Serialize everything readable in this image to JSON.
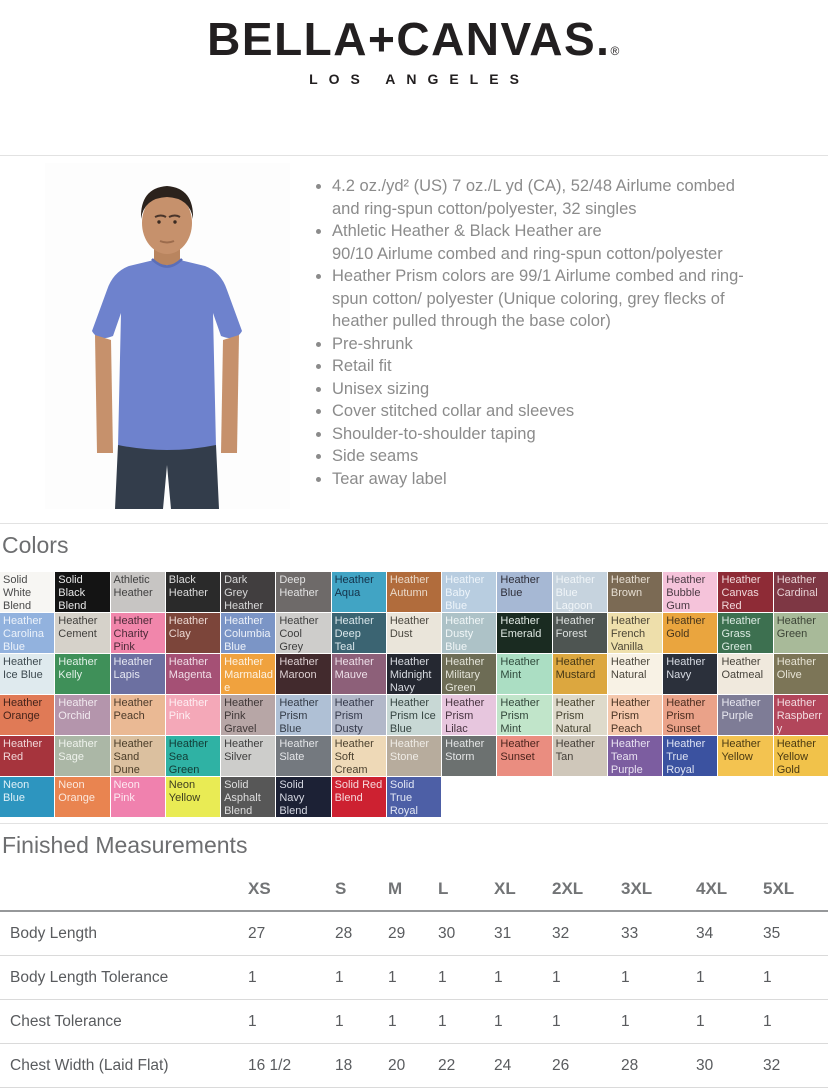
{
  "logo": {
    "brand": "BELLA+CANVAS.",
    "registered": "®",
    "subtitle": "LOS ANGELES"
  },
  "product": {
    "photo_colors": {
      "shirt": "#6e82cd",
      "jeans": "#333d4b",
      "skin": "#c6916c",
      "hair": "#2b221c"
    },
    "bullets": [
      "4.2 oz./yd² (US) 7 oz./L yd (CA), 52/48 Airlume combed\nand ring-spun cotton/polyester, 32 singles",
      "Athletic Heather & Black Heather are\n90/10 Airlume combed and ring-spun cotton/polyester",
      "Heather Prism colors are 99/1 Airlume combed and ring-\nspun cotton/ polyester (Unique coloring, grey flecks of\nheather pulled through the base color)",
      "Pre-shrunk",
      "Retail fit",
      "Unisex sizing",
      "Cover stitched collar and sleeves",
      "Shoulder-to-shoulder taping",
      "Side seams",
      "Tear away label"
    ]
  },
  "colors": {
    "title": "Colors",
    "swatches": [
      {
        "name": "Solid White Blend",
        "bg": "#f7f6f3",
        "fg": "#4a4a4a"
      },
      {
        "name": "Solid Black Blend",
        "bg": "#141414",
        "fg": "#e8e8e8"
      },
      {
        "name": "Athletic Heather",
        "bg": "#c7c5c3",
        "fg": "#3f3f3f"
      },
      {
        "name": "Black Heather",
        "bg": "#2a2a2a",
        "fg": "#dcdcdc"
      },
      {
        "name": "Dark Grey Heather",
        "bg": "#413e3f",
        "fg": "#d8d8d8"
      },
      {
        "name": "Deep Heather",
        "bg": "#6e6a69",
        "fg": "#e2e2e2"
      },
      {
        "name": "Heather Aqua",
        "bg": "#41a4c4",
        "fg": "#14324a"
      },
      {
        "name": "Heather Autumn",
        "bg": "#b16c3c",
        "fg": "#eadaca"
      },
      {
        "name": "Heather Baby Blue",
        "bg": "#b8cde0",
        "fg": "#edf4fa"
      },
      {
        "name": "Heather Blue",
        "bg": "#a6b8d4",
        "fg": "#2f2f3a"
      },
      {
        "name": "Heather Blue Lagoon",
        "bg": "#c6d3de",
        "fg": "#f0f5f8"
      },
      {
        "name": "Heather Brown",
        "bg": "#7b6a54",
        "fg": "#e6ded2"
      },
      {
        "name": "Heather Bubble Gum",
        "bg": "#f5c3da",
        "fg": "#4a3a44"
      },
      {
        "name": "Heather Canvas Red",
        "bg": "#8e2b36",
        "fg": "#f0d8da"
      },
      {
        "name": "Heather Cardinal",
        "bg": "#7e3744",
        "fg": "#e8d2d5"
      },
      {
        "name": "Heather Carolina Blue",
        "bg": "#92b2de",
        "fg": "#ecf2fa"
      },
      {
        "name": "Heather Cement",
        "bg": "#d6d2ca",
        "fg": "#403f3c"
      },
      {
        "name": "Heather Charity Pink",
        "bg": "#f186ab",
        "fg": "#4c2a38"
      },
      {
        "name": "Heather Clay",
        "bg": "#7c453a",
        "fg": "#ecd8d2"
      },
      {
        "name": "Heather Columbia Blue",
        "bg": "#7b95c6",
        "fg": "#eef2f9"
      },
      {
        "name": "Heather Cool Grey",
        "bg": "#cecdcb",
        "fg": "#3e3e3e"
      },
      {
        "name": "Heather Deep Teal",
        "bg": "#3b6472",
        "fg": "#d9e6ea"
      },
      {
        "name": "Heather Dust",
        "bg": "#eae5da",
        "fg": "#4a473f"
      },
      {
        "name": "Heather Dusty Blue",
        "bg": "#adc2c7",
        "fg": "#f0f6f7"
      },
      {
        "name": "Heather Emerald",
        "bg": "#1a2b21",
        "fg": "#dfe8e2"
      },
      {
        "name": "Heather Forest",
        "bg": "#4e5552",
        "fg": "#dde1df"
      },
      {
        "name": "Heather French Vanilla",
        "bg": "#eedfab",
        "fg": "#4c4636"
      },
      {
        "name": "Heather Gold",
        "bg": "#eaa53e",
        "fg": "#46351c"
      },
      {
        "name": "Heather Grass Green",
        "bg": "#3d7050",
        "fg": "#dcebe2"
      },
      {
        "name": "Heather Green",
        "bg": "#a8ba99",
        "fg": "#3c4436"
      },
      {
        "name": "Heather Ice Blue",
        "bg": "#dfeaee",
        "fg": "#3d4a50"
      },
      {
        "name": "Heather Kelly",
        "bg": "#3f9059",
        "fg": "#e1f0e7"
      },
      {
        "name": "Heather Lapis",
        "bg": "#6c70a1",
        "fg": "#e6e8f2"
      },
      {
        "name": "Heather Magenta",
        "bg": "#a55075",
        "fg": "#f0dde7"
      },
      {
        "name": "Heather Marmalade",
        "bg": "#f0a23e",
        "fg": "#fdf3e3"
      },
      {
        "name": "Heather Maroon",
        "bg": "#422a2d",
        "fg": "#ddd0d2"
      },
      {
        "name": "Heather Mauve",
        "bg": "#8d6079",
        "fg": "#eddfe8"
      },
      {
        "name": "Heather Midnight Navy",
        "bg": "#252831",
        "fg": "#d7dae0"
      },
      {
        "name": "Heather Military Green",
        "bg": "#6d6c55",
        "fg": "#e3e3d8"
      },
      {
        "name": "Heather Mint",
        "bg": "#abdec3",
        "fg": "#2f4a3c"
      },
      {
        "name": "Heather Mustard",
        "bg": "#dca73f",
        "fg": "#443615"
      },
      {
        "name": "Heather Natural",
        "bg": "#f8f2e5",
        "fg": "#4a463c"
      },
      {
        "name": "Heather Navy",
        "bg": "#2b303b",
        "fg": "#d6dae2"
      },
      {
        "name": "Heather Oatmeal",
        "bg": "#f0e9dd",
        "fg": "#47433b"
      },
      {
        "name": "Heather Olive",
        "bg": "#7c7557",
        "fg": "#e6e3d4"
      },
      {
        "name": "Heather Orange",
        "bg": "#e07a56",
        "fg": "#45231a"
      },
      {
        "name": "Heather Orchid",
        "bg": "#b495ac",
        "fg": "#f1e9ef"
      },
      {
        "name": "Heather Peach",
        "bg": "#eab994",
        "fg": "#4c3a2a"
      },
      {
        "name": "Heather Pink",
        "bg": "#f4a8b8",
        "fg": "#fdeef2"
      },
      {
        "name": "Heather Pink Gravel",
        "bg": "#b7a6a6",
        "fg": "#3e3636"
      },
      {
        "name": "Heather Prism Blue",
        "bg": "#afc0d5",
        "fg": "#333b47"
      },
      {
        "name": "Heather Prism Dusty Blue",
        "bg": "#b2b8c9",
        "fg": "#34384a"
      },
      {
        "name": "Heather Prism Ice Blue",
        "bg": "#c8d8d5",
        "fg": "#364542"
      },
      {
        "name": "Heather Prism Lilac",
        "bg": "#e7c6de",
        "fg": "#46323f"
      },
      {
        "name": "Heather Prism Mint",
        "bg": "#c1e5ca",
        "fg": "#32463a"
      },
      {
        "name": "Heather Prism Natural",
        "bg": "#dedacb",
        "fg": "#44412f"
      },
      {
        "name": "Heather Prism Peach",
        "bg": "#f5c8ad",
        "fg": "#4a3424"
      },
      {
        "name": "Heather Prism Sunset",
        "bg": "#eaa289",
        "fg": "#4a2c1f"
      },
      {
        "name": "Heather Purple",
        "bg": "#7e7c96",
        "fg": "#e9e9f1"
      },
      {
        "name": "Heather Raspberry",
        "bg": "#b2465b",
        "fg": "#f2dbe0"
      },
      {
        "name": "Heather Red",
        "bg": "#a6343d",
        "fg": "#f0d6d8"
      },
      {
        "name": "Heather Sage",
        "bg": "#abb7a6",
        "fg": "#eef2ec"
      },
      {
        "name": "Heather Sand Dune",
        "bg": "#dbc09f",
        "fg": "#4a3c28"
      },
      {
        "name": "Heather Sea Green",
        "bg": "#2fb2a4",
        "fg": "#123c36"
      },
      {
        "name": "Heather Silver",
        "bg": "#cdcdcb",
        "fg": "#3e3e3e"
      },
      {
        "name": "Heather Slate",
        "bg": "#74797f",
        "fg": "#e3e5e8"
      },
      {
        "name": "Heather Soft Cream",
        "bg": "#eed9b7",
        "fg": "#4c4230"
      },
      {
        "name": "Heather Stone",
        "bg": "#b7ac9d",
        "fg": "#efece6"
      },
      {
        "name": "Heather Storm",
        "bg": "#6c7170",
        "fg": "#e2e4e4"
      },
      {
        "name": "Heather Sunset",
        "bg": "#ea8d80",
        "fg": "#4c241d"
      },
      {
        "name": "Heather Tan",
        "bg": "#cfc7ba",
        "fg": "#45403a"
      },
      {
        "name": "Heather Team Purple",
        "bg": "#7c5da0",
        "fg": "#e9e2f1"
      },
      {
        "name": "Heather True Royal",
        "bg": "#3b52a0",
        "fg": "#dde3f2"
      },
      {
        "name": "Heather Yellow",
        "bg": "#f3c350",
        "fg": "#4a3a12"
      },
      {
        "name": "Heather Yellow Gold",
        "bg": "#f1c24a",
        "fg": "#4a3a12"
      },
      {
        "name": "Neon Blue",
        "bg": "#2d95bf",
        "fg": "#dff0f7"
      },
      {
        "name": "Neon Orange",
        "bg": "#e98450",
        "fg": "#fbe8dd"
      },
      {
        "name": "Neon Pink",
        "bg": "#f081ae",
        "fg": "#fde9f1"
      },
      {
        "name": "Neon Yellow",
        "bg": "#e9eb54",
        "fg": "#3e3e20"
      },
      {
        "name": "Solid Asphalt Blend",
        "bg": "#575757",
        "fg": "#dedede"
      },
      {
        "name": "Solid Navy Blend",
        "bg": "#1c2135",
        "fg": "#d5d8e2"
      },
      {
        "name": "Solid Red Blend",
        "bg": "#cd2131",
        "fg": "#f6d9dc"
      },
      {
        "name": "Solid True Royal Blend",
        "bg": "#4d5fa6",
        "fg": "#e2e7f4"
      }
    ]
  },
  "measurements": {
    "title": "Finished Measurements",
    "sizes": [
      "XS",
      "S",
      "M",
      "L",
      "XL",
      "2XL",
      "3XL",
      "4XL",
      "5XL"
    ],
    "rows": [
      {
        "label": "Body Length",
        "values": [
          "27",
          "28",
          "29",
          "30",
          "31",
          "32",
          "33",
          "34",
          "35"
        ]
      },
      {
        "label": "Body Length Tolerance",
        "values": [
          "1",
          "1",
          "1",
          "1",
          "1",
          "1",
          "1",
          "1",
          "1"
        ]
      },
      {
        "label": "Chest Tolerance",
        "values": [
          "1",
          "1",
          "1",
          "1",
          "1",
          "1",
          "1",
          "1",
          "1"
        ]
      },
      {
        "label": "Chest Width (Laid Flat)",
        "values": [
          "16 1/2",
          "18",
          "20",
          "22",
          "24",
          "26",
          "28",
          "30",
          "32"
        ]
      }
    ]
  }
}
